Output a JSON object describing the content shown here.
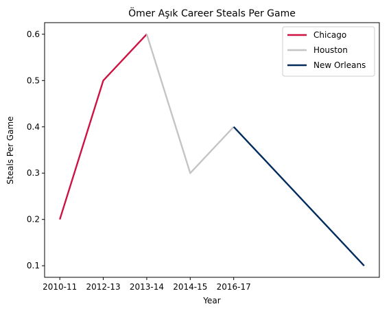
{
  "chart_data": {
    "type": "line",
    "title": "Ömer Aşık Career Steals Per Game",
    "xlabel": "Year",
    "ylabel": "Steals Per Game",
    "x_ticks": [
      "2010-11",
      "2012-13",
      "2013-14",
      "2014-15",
      "2016-17"
    ],
    "y_ticks": [
      "0.1",
      "0.2",
      "0.3",
      "0.4",
      "0.5",
      "0.6"
    ],
    "ylim": [
      0.075,
      0.625
    ],
    "xlim": [
      -0.35,
      7.35
    ],
    "legend_position": "top-right",
    "series": [
      {
        "name": "Chicago",
        "color": "#CE1141",
        "points": [
          [
            0,
            0.2
          ],
          [
            1,
            0.5
          ],
          [
            2,
            0.6
          ]
        ]
      },
      {
        "name": "Houston",
        "color": "#C4C4C4",
        "points": [
          [
            2,
            0.6
          ],
          [
            3,
            0.3
          ],
          [
            4,
            0.4
          ]
        ]
      },
      {
        "name": "New Orleans",
        "color": "#002B5C",
        "points": [
          [
            4,
            0.4
          ],
          [
            7,
            0.1
          ]
        ]
      }
    ]
  }
}
